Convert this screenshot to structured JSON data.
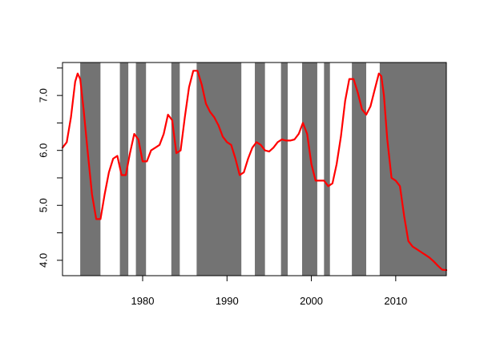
{
  "chart_data": {
    "type": "line",
    "title": "",
    "xlabel": "",
    "ylabel": "",
    "xlim": [
      1970.5,
      2016
    ],
    "ylim": [
      3.72,
      7.6
    ],
    "x_ticks": [
      1980,
      1990,
      2000,
      2010
    ],
    "x_tick_labels": [
      "1980",
      "1990",
      "2000",
      "2010"
    ],
    "y_ticks": [
      4.0,
      4.5,
      5.0,
      5.5,
      6.0,
      6.5,
      7.0,
      7.5
    ],
    "y_tick_labels": [
      "4.0",
      "",
      "5.0",
      "",
      "6.0",
      "",
      "7.0",
      ""
    ],
    "grid": false,
    "shaded_color": "#737373",
    "line_color": "#ff0000",
    "shaded_periods": [
      [
        1972.6,
        1975.0
      ],
      [
        1977.3,
        1978.3
      ],
      [
        1979.2,
        1980.4
      ],
      [
        1983.4,
        1984.4
      ],
      [
        1986.4,
        1991.7
      ],
      [
        1993.3,
        1994.5
      ],
      [
        1996.4,
        1997.2
      ],
      [
        1998.9,
        2000.7
      ],
      [
        2001.5,
        2002.2
      ],
      [
        2004.8,
        2006.5
      ],
      [
        2008.1,
        2016.0
      ]
    ],
    "series": [
      {
        "x": [
          1970.5,
          1971.0,
          1971.5,
          1972.0,
          1972.3,
          1972.6,
          1973.0,
          1973.5,
          1974.0,
          1974.5,
          1975.0,
          1975.5,
          1976.0,
          1976.5,
          1977.0,
          1977.5,
          1978.0,
          1978.5,
          1979.0,
          1979.5,
          1980.0,
          1980.5,
          1981.0,
          1981.5,
          1982.0,
          1982.5,
          1983.0,
          1983.5,
          1984.0,
          1984.5,
          1985.0,
          1985.5,
          1986.0,
          1986.5,
          1987.0,
          1987.5,
          1988.0,
          1988.5,
          1989.0,
          1989.5,
          1990.0,
          1990.5,
          1991.0,
          1991.5,
          1992.0,
          1992.5,
          1993.0,
          1993.5,
          1994.0,
          1994.5,
          1995.0,
          1995.5,
          1996.0,
          1996.5,
          1997.0,
          1997.5,
          1998.0,
          1998.5,
          1999.0,
          1999.5,
          2000.0,
          2000.5,
          2001.0,
          2001.5,
          2002.0,
          2002.5,
          2003.0,
          2003.5,
          2004.0,
          2004.5,
          2005.0,
          2005.5,
          2006.0,
          2006.5,
          2007.0,
          2007.5,
          2008.0,
          2008.3,
          2008.6,
          2009.0,
          2009.5,
          2010.0,
          2010.5,
          2011.0,
          2011.5,
          2012.0,
          2012.5,
          2013.0,
          2013.5,
          2014.0,
          2014.5,
          2015.0,
          2015.5,
          2016.0
        ],
        "y": [
          6.05,
          6.15,
          6.6,
          7.25,
          7.4,
          7.3,
          6.75,
          5.95,
          5.2,
          4.75,
          4.75,
          5.2,
          5.6,
          5.85,
          5.9,
          5.55,
          5.55,
          5.95,
          6.3,
          6.2,
          5.8,
          5.8,
          6.0,
          6.05,
          6.1,
          6.3,
          6.65,
          6.55,
          5.95,
          6.0,
          6.6,
          7.15,
          7.45,
          7.45,
          7.2,
          6.85,
          6.7,
          6.6,
          6.45,
          6.25,
          6.15,
          6.1,
          5.85,
          5.55,
          5.6,
          5.85,
          6.05,
          6.15,
          6.1,
          6.0,
          5.98,
          6.05,
          6.15,
          6.2,
          6.18,
          6.18,
          6.2,
          6.3,
          6.5,
          6.3,
          5.75,
          5.45,
          5.45,
          5.45,
          5.35,
          5.4,
          5.75,
          6.25,
          6.9,
          7.3,
          7.3,
          7.05,
          6.75,
          6.65,
          6.8,
          7.1,
          7.4,
          7.35,
          7.0,
          6.2,
          5.5,
          5.45,
          5.35,
          4.8,
          4.35,
          4.25,
          4.2,
          4.15,
          4.1,
          4.05,
          3.98,
          3.9,
          3.83,
          3.82
        ]
      }
    ]
  }
}
